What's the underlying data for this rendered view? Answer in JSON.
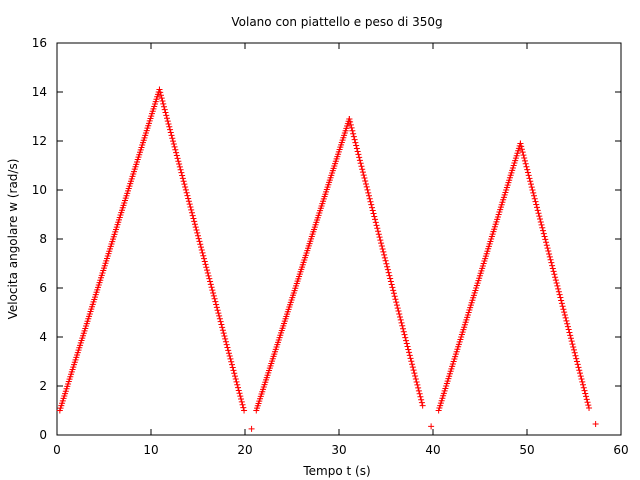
{
  "chart_data": {
    "type": "scatter",
    "title": "Volano con piattello e peso di 350g",
    "xlabel": "Tempo t (s)",
    "ylabel": "Velocita angolare w (rad/s)",
    "xlim": [
      0,
      60
    ],
    "ylim": [
      0,
      16
    ],
    "xticks": [
      "0",
      "10",
      "20",
      "30",
      "40",
      "50",
      "60"
    ],
    "yticks": [
      "0",
      "2",
      "4",
      "6",
      "8",
      "10",
      "12",
      "14",
      "16"
    ],
    "grid": false,
    "legend": "none",
    "marker": "plus",
    "color": "#ff0000",
    "segments": [
      {
        "x_start": 0.3,
        "x_end": 10.9,
        "y_start": 1.0,
        "y_end": 14.1,
        "dx": 0.08
      },
      {
        "x_start": 10.9,
        "x_end": 19.9,
        "y_start": 14.1,
        "y_end": 1.0,
        "dx": 0.08
      },
      {
        "x_start": 21.2,
        "x_end": 31.1,
        "y_start": 1.0,
        "y_end": 12.9,
        "dx": 0.08
      },
      {
        "x_start": 31.1,
        "x_end": 38.9,
        "y_start": 12.9,
        "y_end": 1.2,
        "dx": 0.08
      },
      {
        "x_start": 40.6,
        "x_end": 49.3,
        "y_start": 1.0,
        "y_end": 11.9,
        "dx": 0.08
      },
      {
        "x_start": 49.3,
        "x_end": 56.6,
        "y_start": 11.9,
        "y_end": 1.1,
        "dx": 0.08
      }
    ],
    "points": [
      {
        "x": 20.7,
        "y": 0.25
      },
      {
        "x": 39.8,
        "y": 0.35
      },
      {
        "x": 57.3,
        "y": 0.45
      }
    ]
  }
}
